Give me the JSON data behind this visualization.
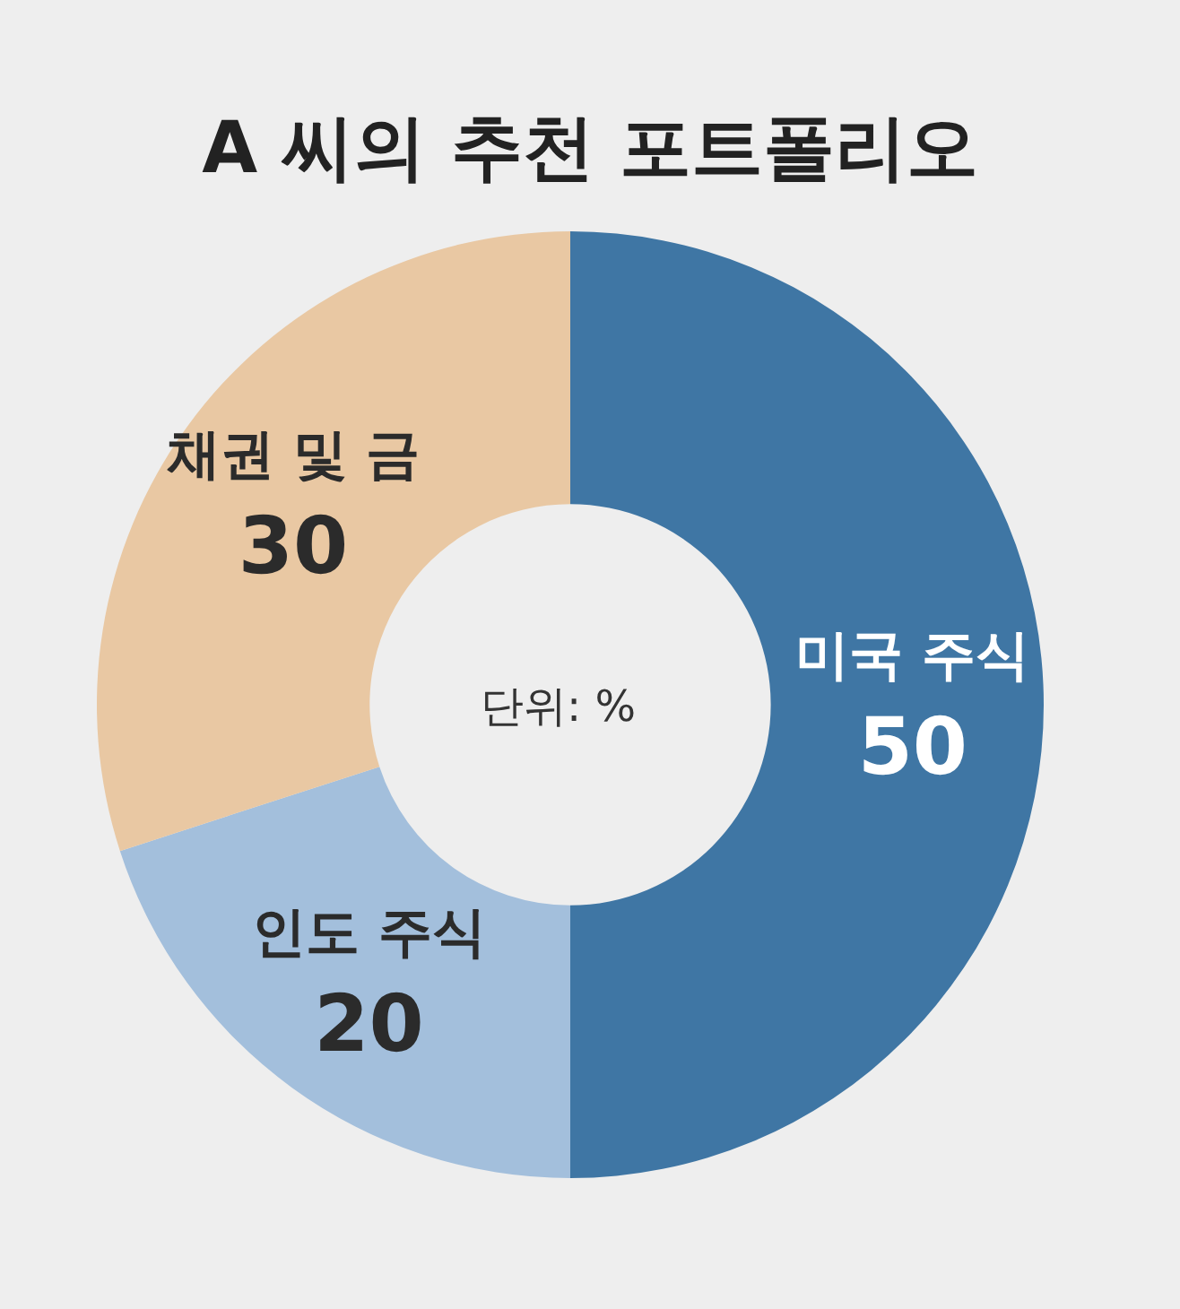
{
  "chart_data": {
    "type": "donut",
    "title": "A 씨의 추천 포트폴리오",
    "categories": [
      "미국 주식",
      "인도 주식",
      "채권 및 금"
    ],
    "values": [
      50,
      20,
      30
    ],
    "colors": [
      "#3f76a4",
      "#a3bfdc",
      "#e9c8a3"
    ],
    "data_labels": true,
    "legend": false,
    "annotations": [
      "단위: %"
    ]
  }
}
